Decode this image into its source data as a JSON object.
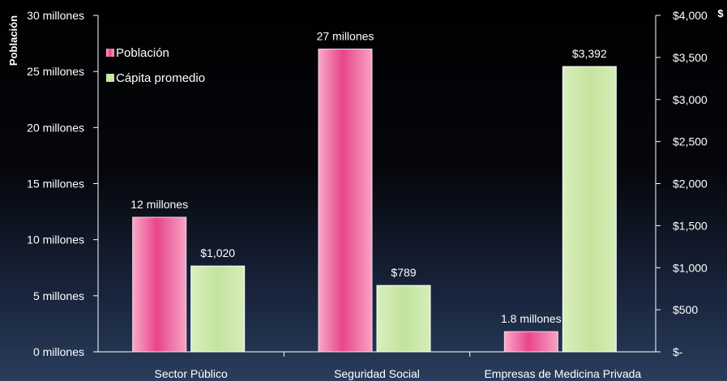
{
  "chart_data": {
    "type": "bar",
    "categories": [
      "Sector Público",
      "Seguridad Social",
      "Empresas de Medicina Privada"
    ],
    "series": [
      {
        "name": "Población",
        "axis": "left",
        "values": [
          12,
          27,
          1.8
        ],
        "labels": [
          "12 millones",
          "27 millones",
          "1.8 millones"
        ],
        "color": "#e8458a"
      },
      {
        "name": "Cápita promedio",
        "axis": "right",
        "values": [
          1020,
          789,
          3392
        ],
        "labels": [
          "$1,020",
          "$789",
          "$3,392"
        ],
        "color": "#c9e6a6"
      }
    ],
    "left_axis": {
      "title": "Población",
      "ylim": [
        0,
        30
      ],
      "ticks": [
        0,
        5,
        10,
        15,
        20,
        25,
        30
      ],
      "tick_labels": [
        "0 millones",
        "5 millones",
        "10 millones",
        "15 millones",
        "20 millones",
        "25 millones",
        "30 millones"
      ]
    },
    "right_axis": {
      "title": "$",
      "ylim": [
        0,
        4000
      ],
      "ticks": [
        0,
        500,
        1000,
        1500,
        2000,
        2500,
        3000,
        3500,
        4000
      ],
      "tick_labels": [
        "$-",
        "$500",
        "$1,000",
        "$1,500",
        "$2,000",
        "$2,500",
        "$3,000",
        "$3,500",
        "$4,000"
      ]
    },
    "legend": {
      "placement": "top-left"
    },
    "grid": false
  }
}
